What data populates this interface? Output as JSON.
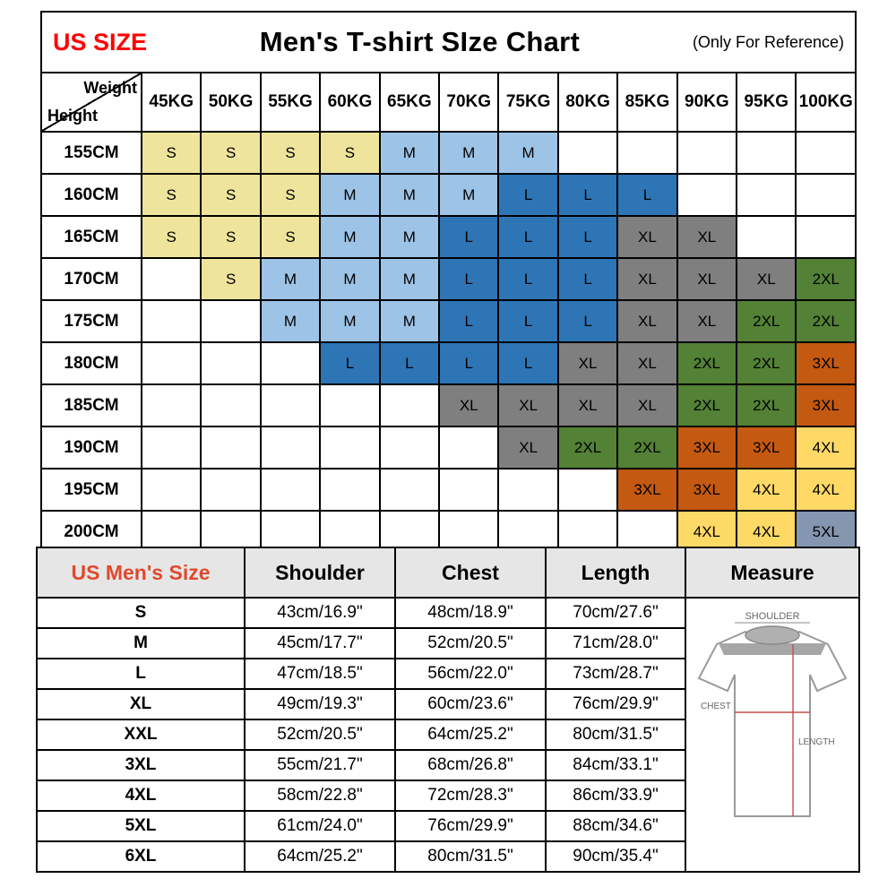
{
  "header": {
    "us_size": "US SIZE",
    "title": "Men's T-shirt SIze Chart",
    "note": "(Only For Reference)"
  },
  "size_grid": {
    "corner_top": "Weight",
    "corner_bottom": "Height",
    "weights": [
      "45KG",
      "50KG",
      "55KG",
      "60KG",
      "65KG",
      "70KG",
      "75KG",
      "80KG",
      "85KG",
      "90KG",
      "95KG",
      "100KG"
    ],
    "rows": [
      {
        "height": "155CM",
        "cells": [
          "S",
          "S",
          "S",
          "S",
          "M",
          "M",
          "M",
          "",
          "",
          "",
          "",
          ""
        ]
      },
      {
        "height": "160CM",
        "cells": [
          "S",
          "S",
          "S",
          "M",
          "M",
          "M",
          "L",
          "L",
          "L",
          "",
          "",
          ""
        ]
      },
      {
        "height": "165CM",
        "cells": [
          "S",
          "S",
          "S",
          "M",
          "M",
          "L",
          "L",
          "L",
          "XL",
          "XL",
          "",
          ""
        ]
      },
      {
        "height": "170CM",
        "cells": [
          "",
          "S",
          "M",
          "M",
          "M",
          "L",
          "L",
          "L",
          "XL",
          "XL",
          "XL",
          "2XL"
        ]
      },
      {
        "height": "175CM",
        "cells": [
          "",
          "",
          "M",
          "M",
          "M",
          "L",
          "L",
          "L",
          "XL",
          "XL",
          "2XL",
          "2XL"
        ]
      },
      {
        "height": "180CM",
        "cells": [
          "",
          "",
          "",
          "L",
          "L",
          "L",
          "L",
          "XL",
          "XL",
          "2XL",
          "2XL",
          "3XL"
        ]
      },
      {
        "height": "185CM",
        "cells": [
          "",
          "",
          "",
          "",
          "",
          "XL",
          "XL",
          "XL",
          "XL",
          "2XL",
          "2XL",
          "3XL"
        ]
      },
      {
        "height": "190CM",
        "cells": [
          "",
          "",
          "",
          "",
          "",
          "",
          "XL",
          "2XL",
          "2XL",
          "3XL",
          "3XL",
          "4XL"
        ]
      },
      {
        "height": "195CM",
        "cells": [
          "",
          "",
          "",
          "",
          "",
          "",
          "",
          "",
          "3XL",
          "3XL",
          "4XL",
          "4XL"
        ]
      },
      {
        "height": "200CM",
        "cells": [
          "",
          "",
          "",
          "",
          "",
          "",
          "",
          "",
          "",
          "4XL",
          "4XL",
          "5XL"
        ]
      }
    ]
  },
  "size_colors": {
    "S": "#EFE49C",
    "M": "#9DC3E6",
    "L": "#2E75B6",
    "XL": "#7F7F7F",
    "2XL": "#538135",
    "3XL": "#C45911",
    "4XL": "#FFD966",
    "5XL": "#8496B0"
  },
  "measurements": {
    "headers": [
      "US Men's Size",
      "Shoulder",
      "Chest",
      "Length",
      "Measure"
    ],
    "rows": [
      [
        "S",
        "43cm/16.9\"",
        "48cm/18.9\"",
        "70cm/27.6\""
      ],
      [
        "M",
        "45cm/17.7\"",
        "52cm/20.5\"",
        "71cm/28.0\""
      ],
      [
        "L",
        "47cm/18.5\"",
        "56cm/22.0\"",
        "73cm/28.7\""
      ],
      [
        "XL",
        "49cm/19.3\"",
        "60cm/23.6\"",
        "76cm/29.9\""
      ],
      [
        "XXL",
        "52cm/20.5\"",
        "64cm/25.2\"",
        "80cm/31.5\""
      ],
      [
        "3XL",
        "55cm/21.7\"",
        "68cm/26.8\"",
        "84cm/33.1\""
      ],
      [
        "4XL",
        "58cm/22.8\"",
        "72cm/28.3\"",
        "86cm/33.9\""
      ],
      [
        "5XL",
        "61cm/24.0\"",
        "76cm/29.9\"",
        "88cm/34.6\""
      ],
      [
        "6XL",
        "64cm/25.2\"",
        "80cm/31.5\"",
        "90cm/35.4\""
      ]
    ]
  },
  "diagram": {
    "shoulder": "SHOULDER",
    "chest": "CHEST",
    "length": "LENGTH"
  },
  "colors": {
    "us_size_text": "#FF0000",
    "us_mens_size_text": "#E0492D",
    "table_header_bg": "#E7E6E6",
    "grid_border": "#000000"
  }
}
